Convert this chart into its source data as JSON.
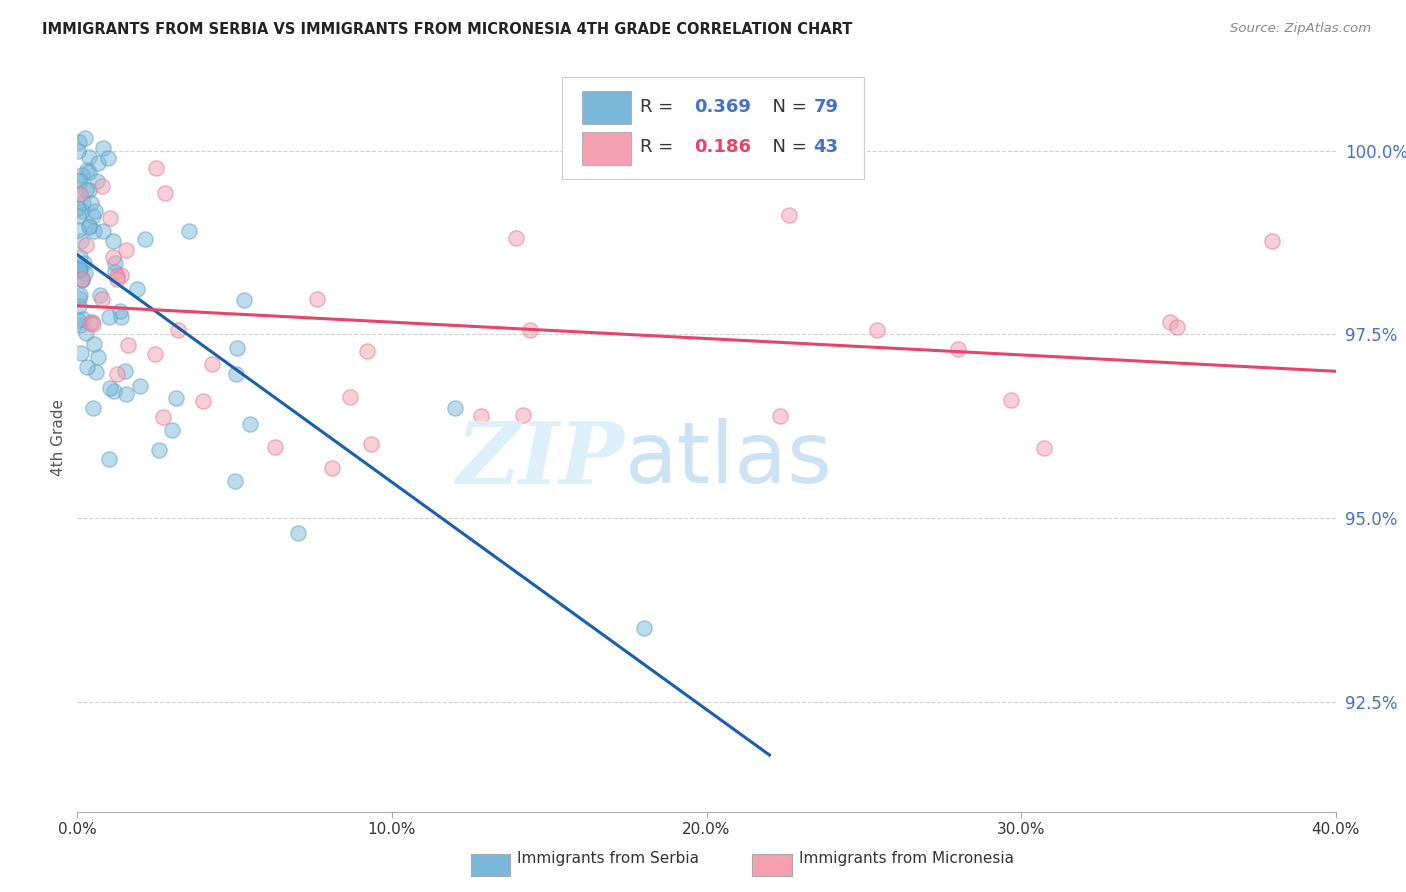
{
  "title": "IMMIGRANTS FROM SERBIA VS IMMIGRANTS FROM MICRONESIA 4TH GRADE CORRELATION CHART",
  "source": "Source: ZipAtlas.com",
  "ylabel": "4th Grade",
  "xlim": [
    0.0,
    40.0
  ],
  "ylim": [
    91.0,
    101.2
  ],
  "yticks": [
    92.5,
    95.0,
    97.5,
    100.0
  ],
  "ytick_labels": [
    "92.5%",
    "95.0%",
    "97.5%",
    "100.0%"
  ],
  "xtick_positions": [
    0.0,
    10.0,
    20.0,
    30.0,
    40.0
  ],
  "xtick_labels": [
    "0.0%",
    "10.0%",
    "20.0%",
    "30.0%",
    "40.0%"
  ],
  "serbia_color": "#7ab8d9",
  "serbia_edge_color": "#5a9ec4",
  "micronesia_color": "#f4a0b0",
  "micronesia_edge_color": "#e07090",
  "serbia_line_color": "#1a5fa8",
  "micronesia_line_color": "#e8446a",
  "serbia_R": 0.369,
  "serbia_N": 79,
  "micronesia_R": 0.186,
  "micronesia_N": 43,
  "legend_label_serbia": "Immigrants from Serbia",
  "legend_label_micronesia": "Immigrants from Micronesia",
  "watermark_color_zip": "#daeef8",
  "watermark_color_atlas": "#b8d8ee",
  "background_color": "#ffffff",
  "grid_color": "#cccccc",
  "title_color": "#222222",
  "right_tick_color": "#4472c4",
  "legend_R_color_serbia": "#4472c4",
  "legend_R_color_micronesia": "#e8446a",
  "legend_N_color": "#4472c4"
}
